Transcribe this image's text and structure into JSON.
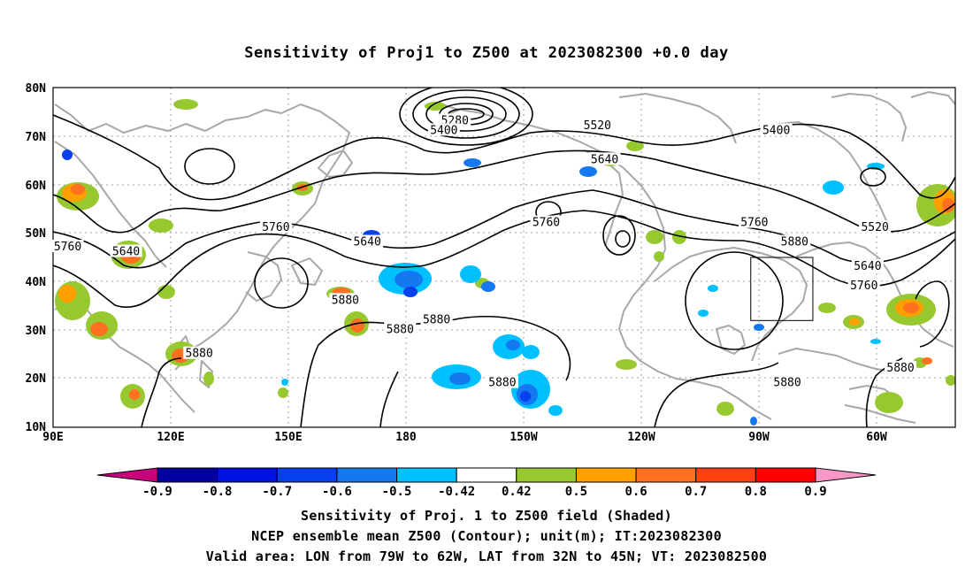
{
  "title": "Sensitivity of Proj1 to Z500 at 2023082300 +0.0 day",
  "axes": {
    "lat_labels": [
      "80N",
      "70N",
      "60N",
      "50N",
      "40N",
      "30N",
      "20N",
      "10N"
    ],
    "lon_labels": [
      "90E",
      "120E",
      "150E",
      "180",
      "150W",
      "120W",
      "90W",
      "60W"
    ]
  },
  "contour_labels": [
    {
      "text": "5280",
      "lon": 200,
      "lat": 73
    },
    {
      "text": "5400",
      "lon": 197,
      "lat": 71
    },
    {
      "text": "5520",
      "lon": 239,
      "lat": 72
    },
    {
      "text": "5400",
      "lon": 288,
      "lat": 71
    },
    {
      "text": "5640",
      "lon": 241,
      "lat": 65
    },
    {
      "text": "5760",
      "lon": 225,
      "lat": 52
    },
    {
      "text": "5760",
      "lon": 282,
      "lat": 52
    },
    {
      "text": "5880",
      "lon": 293,
      "lat": 48
    },
    {
      "text": "5520",
      "lon": 315,
      "lat": 51
    },
    {
      "text": "5640",
      "lon": 313,
      "lat": 43
    },
    {
      "text": "5760",
      "lon": 312,
      "lat": 39
    },
    {
      "text": "5760",
      "lon": 151,
      "lat": 51
    },
    {
      "text": "5640",
      "lon": 176,
      "lat": 48
    },
    {
      "text": "5760",
      "lon": 94,
      "lat": 47
    },
    {
      "text": "5640",
      "lon": 110,
      "lat": 46
    },
    {
      "text": "5880",
      "lon": 170,
      "lat": 36
    },
    {
      "text": "5880",
      "lon": 185,
      "lat": 30
    },
    {
      "text": "5880",
      "lon": 195,
      "lat": 32
    },
    {
      "text": "5880",
      "lon": 130,
      "lat": 25
    },
    {
      "text": "5880",
      "lon": 213,
      "lat": 19
    },
    {
      "text": "5880",
      "lon": 291,
      "lat": 19
    },
    {
      "text": "5880",
      "lon": 322,
      "lat": 22
    }
  ],
  "valid_area": {
    "lon_min": 281,
    "lon_max": 298,
    "lat_min": 32,
    "lat_max": 45
  },
  "colorbar": {
    "labels": [
      "-0.9",
      "-0.8",
      "-0.7",
      "-0.6",
      "-0.5",
      "-0.42",
      "0.42",
      "0.5",
      "0.6",
      "0.7",
      "0.8",
      "0.9"
    ],
    "colors": [
      "#c8007c",
      "#0000a0",
      "#0010e0",
      "#0840f0",
      "#1478f0",
      "#00c0ff",
      "#ffffff",
      "#98c830",
      "#ffa000",
      "#ff7020",
      "#ff4010",
      "#ff0000",
      "#f898c8"
    ]
  },
  "captions": {
    "line1": "Sensitivity of Proj. 1 to Z500 field (Shaded)",
    "line2": "NCEP ensemble mean Z500 (Contour); unit(m); IT:2023082300",
    "line3": "Valid area: LON from 79W to 62W, LAT from 32N to 45N; VT: 2023082500"
  }
}
